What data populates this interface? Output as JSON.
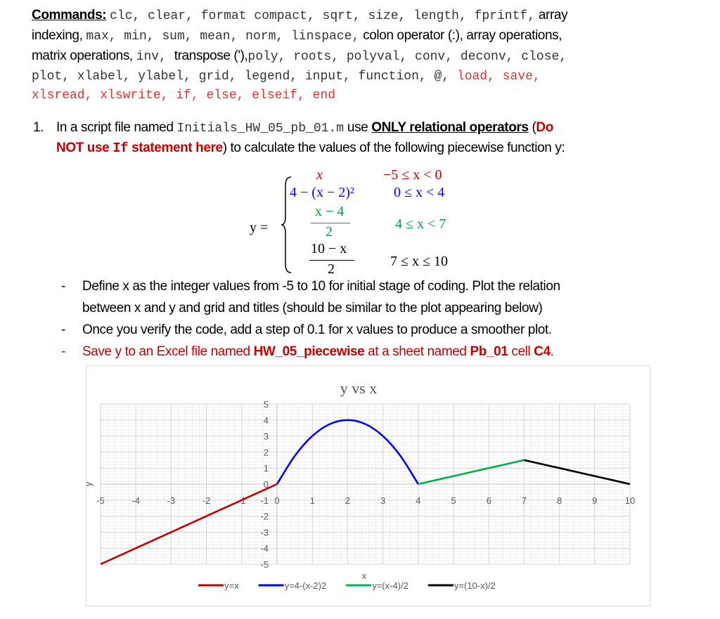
{
  "commands": {
    "label": "Commands:",
    "line1": [
      "clc, clear, format compact, sqrt, size, length, fprintf,",
      " array"
    ],
    "line2": [
      "indexing, ",
      "max, min, sum, mean, norm, linspace,",
      "colon operator (:), array operations,"
    ],
    "line3": [
      "matrix operations, ",
      "inv, ",
      "transpose ('),",
      "poly, roots, polyval, conv, deconv, close,"
    ],
    "line4": [
      "plot, xlabel, ylabel, grid, legend, input, function, @, ",
      "load, save,"
    ],
    "line5": "xlsread, xlswrite, if, else, elseif, end"
  },
  "problem": {
    "number": "1.",
    "t1": "In a script file named ",
    "filename": "Initials_HW_05_pb_01.m",
    "t2": " use ",
    "only": "ONLY relational operators",
    "t3": " (",
    "donot1": "Do",
    "donot2": "NOT use ",
    "ifkw": "If",
    "donot3": " statement here",
    "t4": ") to calculate the values of the following piecewise function y:",
    "equation": {
      "lhs": "y =",
      "cases": [
        {
          "expr": "x",
          "cond": "−5 ≤ x < 0",
          "color": "#c00000"
        },
        {
          "expr": "4 − (x − 2)²",
          "cond": "0 ≤ x < 4",
          "color": "#0000ff"
        },
        {
          "num": "x − 4",
          "den": "2",
          "cond": "4 ≤ x < 7",
          "color": "#00a040"
        },
        {
          "num": "10 − x",
          "den": "2",
          "cond": "7 ≤ x ≤ 10",
          "color": "#000000"
        }
      ]
    },
    "bullets": [
      [
        "Define x as the integer values from -5 to 10 for initial stage of coding. Plot the relation",
        "between x and y and grid and titles (should be similar to the plot appearing below)"
      ],
      [
        "Once you verify the code, add a step of 0.1 for x values to produce a smoother plot."
      ]
    ],
    "save": {
      "t1": "Save y to an Excel file named ",
      "file": "HW_05_piecewise",
      "t2": " at a sheet named ",
      "sheet": "Pb_01",
      "t3": " cell ",
      "cell": "C4",
      "t4": "."
    },
    "dash": "-"
  },
  "chart_data": {
    "type": "line",
    "title": "y vs x",
    "xlabel": "x",
    "ylabel": "y",
    "xlim": [
      -5,
      10
    ],
    "ylim": [
      -5,
      5
    ],
    "xticks": [
      -5,
      -4,
      -3,
      -2,
      -1,
      0,
      1,
      2,
      3,
      4,
      5,
      6,
      7,
      8,
      9,
      10
    ],
    "yticks": [
      -5,
      -4,
      -3,
      -2,
      -1,
      0,
      1,
      2,
      3,
      4,
      5
    ],
    "grid": true,
    "legend": "bottom",
    "series": [
      {
        "name": "y=x",
        "color": "#c00000",
        "x": [
          -5,
          -4,
          -3,
          -2,
          -1,
          0
        ],
        "y": [
          -5,
          -4,
          -3,
          -2,
          -1,
          0
        ]
      },
      {
        "name": "y=4-(x-2)2",
        "color": "#0000ff",
        "x": [
          0,
          0.5,
          1,
          1.5,
          2,
          2.5,
          3,
          3.5,
          4
        ],
        "y": [
          0,
          1.75,
          3,
          3.75,
          4,
          3.75,
          3,
          1.75,
          0
        ]
      },
      {
        "name": "y=(x-4)/2",
        "color": "#00b050",
        "x": [
          4,
          5,
          6,
          7
        ],
        "y": [
          0,
          0.5,
          1,
          1.5
        ]
      },
      {
        "name": "y=(10-x)/2",
        "color": "#000000",
        "x": [
          7,
          8,
          9,
          10
        ],
        "y": [
          1.5,
          1,
          0.5,
          0
        ]
      }
    ]
  }
}
